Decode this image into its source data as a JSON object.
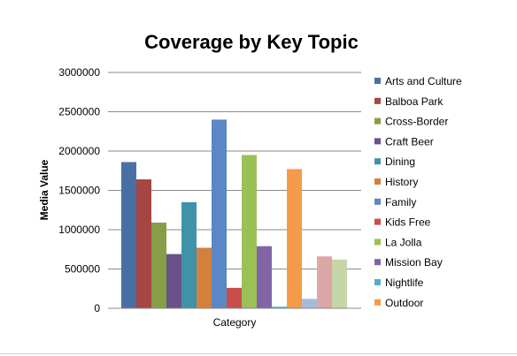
{
  "chart_data": {
    "type": "bar",
    "title": "Coverage by Key Topic",
    "xlabel": "Category",
    "ylabel": "Media Value",
    "ylim": [
      0,
      3000000
    ],
    "yticks": [
      0,
      500000,
      1000000,
      1500000,
      2000000,
      2500000,
      3000000
    ],
    "ytick_labels": [
      "0",
      "500000",
      "1000000",
      "1500000",
      "2000000",
      "2500000",
      "3000000"
    ],
    "grid": true,
    "legend_position": "right",
    "series": [
      {
        "name": "Arts and Culture",
        "value": 1860000,
        "color": "#4a6fa5"
      },
      {
        "name": "Balboa Park",
        "value": 1640000,
        "color": "#a64541"
      },
      {
        "name": "Cross-Border",
        "value": 1090000,
        "color": "#869f47"
      },
      {
        "name": "Craft Beer",
        "value": 690000,
        "color": "#6a5188"
      },
      {
        "name": "Dining",
        "value": 1350000,
        "color": "#3f93a8"
      },
      {
        "name": "History",
        "value": 770000,
        "color": "#d4803d"
      },
      {
        "name": "Family",
        "value": 2400000,
        "color": "#5b87c7"
      },
      {
        "name": "Kids Free",
        "value": 260000,
        "color": "#c94e4a"
      },
      {
        "name": "La Jolla",
        "value": 1950000,
        "color": "#9bc057"
      },
      {
        "name": "Mission Bay",
        "value": 790000,
        "color": "#8164a6"
      },
      {
        "name": "Nightlife",
        "value": 20000,
        "color": "#4ab1c8"
      },
      {
        "name": "Outdoor",
        "value": 1770000,
        "color": "#f49a48"
      },
      {
        "name": "",
        "value": 120000,
        "color": "#a9b9dc"
      },
      {
        "name": "",
        "value": 660000,
        "color": "#dba8a7"
      },
      {
        "name": "",
        "value": 620000,
        "color": "#c6d6a6"
      }
    ]
  }
}
